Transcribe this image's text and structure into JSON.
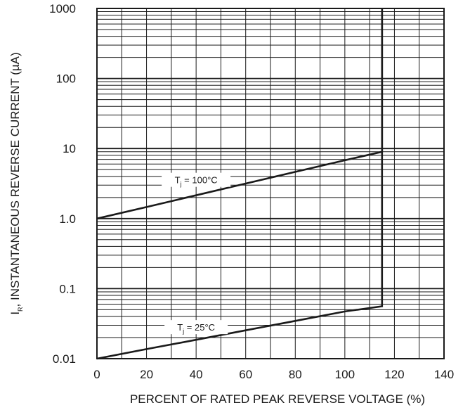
{
  "chart_data": {
    "type": "line",
    "title": "",
    "xlabel": "PERCENT OF RATED PEAK REVERSE VOLTAGE (%)",
    "ylabel": "I",
    "ylabel_sub": "R",
    "ylabel_rest": ", INSTANTANEOUS REVERSE CURRENT (µA)",
    "xlim": [
      0,
      140
    ],
    "ylim": [
      0.01,
      1000
    ],
    "yscale": "log",
    "grid": true,
    "x_ticks": [
      "0",
      "20",
      "40",
      "60",
      "80",
      "100",
      "120",
      "140"
    ],
    "y_ticks": [
      "0.01",
      "0.1",
      "1.0",
      "10",
      "100",
      "1000"
    ],
    "series": [
      {
        "annotation_main": "T",
        "annotation_sub": "j",
        "annotation_rest": " = 100°C",
        "x": [
          0,
          20,
          40,
          60,
          80,
          100,
          115,
          115
        ],
        "y": [
          1.0,
          1.46,
          2.15,
          3.16,
          4.64,
          6.8,
          9.0,
          1000
        ]
      },
      {
        "annotation_main": "T",
        "annotation_sub": "j",
        "annotation_rest": " = 25°C",
        "x": [
          0,
          20,
          40,
          60,
          80,
          100,
          115,
          115
        ],
        "y": [
          0.01,
          0.0137,
          0.0186,
          0.0254,
          0.0346,
          0.0472,
          0.056,
          1000
        ]
      }
    ]
  }
}
